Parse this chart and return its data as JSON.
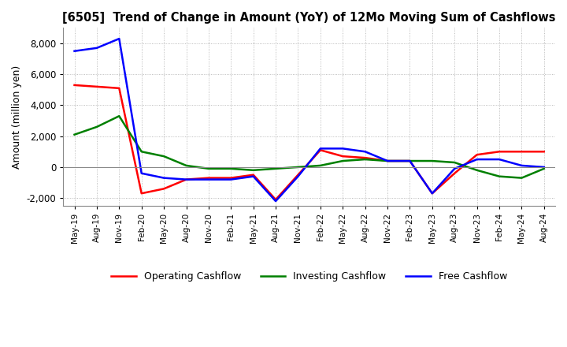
{
  "title": "[6505]  Trend of Change in Amount (YoY) of 12Mo Moving Sum of Cashflows",
  "ylabel": "Amount (million yen)",
  "ylim": [
    -2500,
    9000
  ],
  "yticks": [
    -2000,
    0,
    2000,
    4000,
    6000,
    8000
  ],
  "x_labels": [
    "May-19",
    "Aug-19",
    "Nov-19",
    "Feb-20",
    "May-20",
    "Aug-20",
    "Nov-20",
    "Feb-21",
    "May-21",
    "Aug-21",
    "Nov-21",
    "Feb-22",
    "May-22",
    "Aug-22",
    "Nov-22",
    "Feb-23",
    "May-23",
    "Aug-23",
    "Nov-23",
    "Feb-24",
    "May-24",
    "Aug-24"
  ],
  "operating": [
    5300,
    5200,
    5100,
    -1700,
    -1400,
    -800,
    -700,
    -700,
    -500,
    -2100,
    -500,
    1100,
    700,
    600,
    400,
    400,
    -1700,
    -400,
    800,
    1000,
    1000,
    1000
  ],
  "investing": [
    2100,
    2600,
    3300,
    1000,
    700,
    100,
    -100,
    -100,
    -200,
    -100,
    0,
    100,
    400,
    500,
    400,
    400,
    400,
    300,
    -200,
    -600,
    -700,
    -100
  ],
  "free": [
    7500,
    7700,
    8300,
    -400,
    -700,
    -800,
    -800,
    -800,
    -600,
    -2200,
    -600,
    1200,
    1200,
    1000,
    400,
    400,
    -1700,
    -100,
    500,
    500,
    100,
    0
  ],
  "operating_color": "#ff0000",
  "investing_color": "#008000",
  "free_color": "#0000ff",
  "bg_color": "#ffffff",
  "grid_color": "#aaaaaa"
}
